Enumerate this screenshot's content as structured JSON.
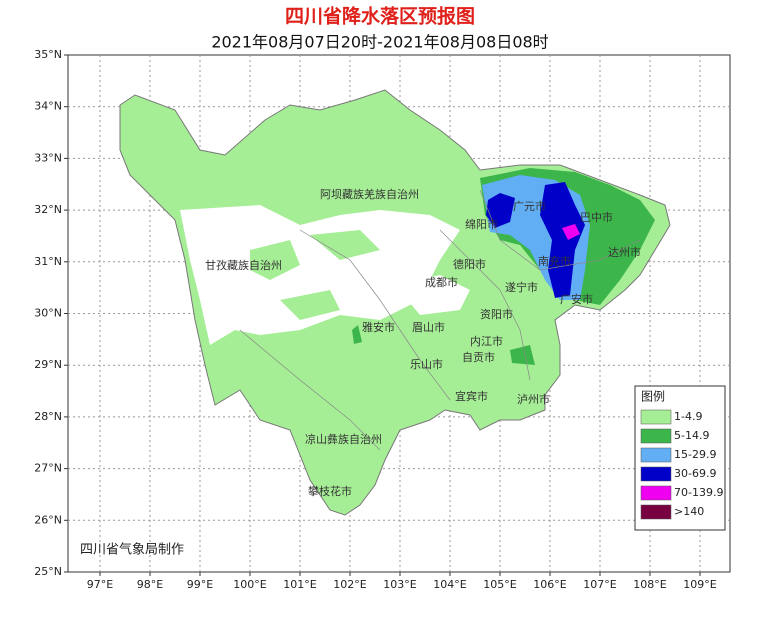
{
  "header": {
    "title": "四川省降水落区预报图",
    "subtitle": "2021年08月07日20时-2021年08月08日08时"
  },
  "axes": {
    "lat_ticks": [
      "35°N",
      "34°N",
      "33°N",
      "32°N",
      "31°N",
      "30°N",
      "29°N",
      "28°N",
      "27°N",
      "26°N",
      "25°N"
    ],
    "lon_ticks": [
      "97°E",
      "98°E",
      "99°E",
      "100°E",
      "101°E",
      "102°E",
      "103°E",
      "104°E",
      "105°E",
      "106°E",
      "107°E",
      "108°E",
      "109°E"
    ]
  },
  "places": [
    "阿坝藏族羌族自治州",
    "甘孜藏族自治州",
    "广元市",
    "绵阳市",
    "巴中市",
    "达州市",
    "南充市",
    "德阳市",
    "成都市",
    "遂宁市",
    "广安市",
    "资阳市",
    "雅安市",
    "眉山市",
    "内江市",
    "自贡市",
    "乐山市",
    "宜宾市",
    "泸州市",
    "凉山彝族自治州",
    "攀枝花市"
  ],
  "legend": {
    "title": "图例",
    "items": [
      {
        "label": "1-4.9",
        "color": "#a6ee96"
      },
      {
        "label": "5-14.9",
        "color": "#3cb64a"
      },
      {
        "label": "15-29.9",
        "color": "#61aef5"
      },
      {
        "label": "30-69.9",
        "color": "#0000c8"
      },
      {
        "label": "70-139.9",
        "color": "#f000f0"
      },
      {
        "label": ">140",
        "color": "#780040"
      }
    ]
  },
  "credit": "四川省气象局制作"
}
